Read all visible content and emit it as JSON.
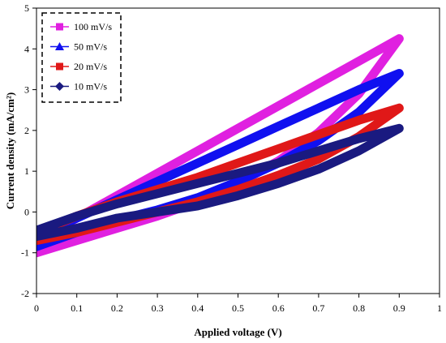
{
  "chart_data": {
    "type": "line",
    "xlabel": "Applied voltage (V)",
    "ylabel": "Current density (mA/cm²)",
    "xlim": [
      0,
      1
    ],
    "ylim": [
      -2,
      5
    ],
    "xticks": [
      "0",
      "0.1",
      "0.2",
      "0.3",
      "0.4",
      "0.5",
      "0.6",
      "0.7",
      "0.8",
      "0.9",
      "1"
    ],
    "yticks": [
      "-2",
      "-1",
      "0",
      "1",
      "2",
      "3",
      "4",
      "5"
    ],
    "grid": false,
    "legend_position": "top-left",
    "series": [
      {
        "name": "100 mV/s",
        "color": "#e020e0",
        "marker": "square",
        "upper": [
          [
            0,
            -0.7
          ],
          [
            0.1,
            -0.15
          ],
          [
            0.2,
            0.4
          ],
          [
            0.3,
            0.95
          ],
          [
            0.4,
            1.5
          ],
          [
            0.5,
            2.05
          ],
          [
            0.6,
            2.6
          ],
          [
            0.7,
            3.15
          ],
          [
            0.8,
            3.7
          ],
          [
            0.9,
            4.25
          ]
        ],
        "lower": [
          [
            0,
            -1.0
          ],
          [
            0.1,
            -0.7
          ],
          [
            0.2,
            -0.4
          ],
          [
            0.3,
            -0.1
          ],
          [
            0.4,
            0.25
          ],
          [
            0.5,
            0.7
          ],
          [
            0.6,
            1.25
          ],
          [
            0.7,
            1.95
          ],
          [
            0.8,
            2.9
          ],
          [
            0.9,
            4.25
          ]
        ]
      },
      {
        "name": "50 mV/s",
        "color": "#1010f0",
        "marker": "triangle",
        "upper": [
          [
            0,
            -0.6
          ],
          [
            0.1,
            -0.15
          ],
          [
            0.2,
            0.3
          ],
          [
            0.3,
            0.75
          ],
          [
            0.4,
            1.2
          ],
          [
            0.5,
            1.65
          ],
          [
            0.6,
            2.1
          ],
          [
            0.7,
            2.55
          ],
          [
            0.8,
            3.0
          ],
          [
            0.9,
            3.4
          ]
        ],
        "lower": [
          [
            0,
            -0.85
          ],
          [
            0.1,
            -0.5
          ],
          [
            0.2,
            -0.2
          ],
          [
            0.3,
            0.05
          ],
          [
            0.4,
            0.35
          ],
          [
            0.5,
            0.75
          ],
          [
            0.6,
            1.2
          ],
          [
            0.7,
            1.75
          ],
          [
            0.8,
            2.45
          ],
          [
            0.9,
            3.4
          ]
        ]
      },
      {
        "name": "20 mV/s",
        "color": "#e01818",
        "marker": "square",
        "upper": [
          [
            0,
            -0.5
          ],
          [
            0.1,
            -0.1
          ],
          [
            0.2,
            0.25
          ],
          [
            0.3,
            0.55
          ],
          [
            0.4,
            0.85
          ],
          [
            0.5,
            1.2
          ],
          [
            0.6,
            1.55
          ],
          [
            0.7,
            1.9
          ],
          [
            0.8,
            2.25
          ],
          [
            0.9,
            2.55
          ]
        ],
        "lower": [
          [
            0,
            -0.7
          ],
          [
            0.1,
            -0.5
          ],
          [
            0.2,
            -0.25
          ],
          [
            0.3,
            0.0
          ],
          [
            0.4,
            0.25
          ],
          [
            0.5,
            0.55
          ],
          [
            0.6,
            0.9
          ],
          [
            0.7,
            1.3
          ],
          [
            0.8,
            1.85
          ],
          [
            0.9,
            2.55
          ]
        ]
      },
      {
        "name": "10 mV/s",
        "color": "#1a1a80",
        "marker": "diamond",
        "upper": [
          [
            0,
            -0.45
          ],
          [
            0.1,
            -0.1
          ],
          [
            0.2,
            0.2
          ],
          [
            0.3,
            0.45
          ],
          [
            0.4,
            0.7
          ],
          [
            0.5,
            0.95
          ],
          [
            0.6,
            1.2
          ],
          [
            0.7,
            1.5
          ],
          [
            0.8,
            1.8
          ],
          [
            0.9,
            2.05
          ]
        ],
        "lower": [
          [
            0,
            -0.6
          ],
          [
            0.1,
            -0.4
          ],
          [
            0.2,
            -0.15
          ],
          [
            0.3,
            0.0
          ],
          [
            0.4,
            0.15
          ],
          [
            0.5,
            0.4
          ],
          [
            0.6,
            0.7
          ],
          [
            0.7,
            1.05
          ],
          [
            0.8,
            1.5
          ],
          [
            0.9,
            2.05
          ]
        ]
      }
    ]
  }
}
